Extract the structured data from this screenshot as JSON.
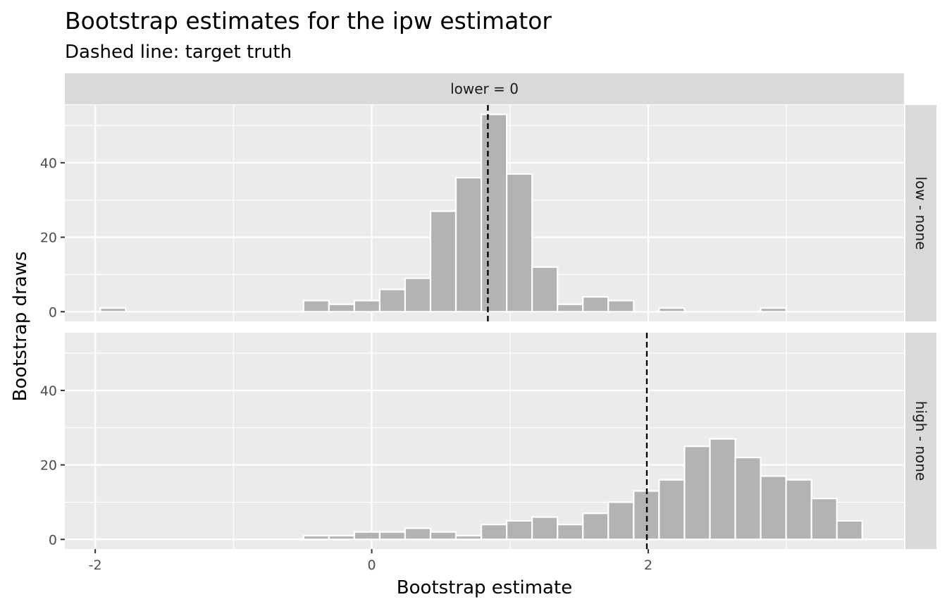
{
  "chart_data": {
    "type": "bar",
    "title": "Bootstrap estimates for the ipw estimator",
    "subtitle": "Dashed line: target truth",
    "xlabel": "Bootstrap estimate",
    "ylabel": "Bootstrap draws",
    "column_strip": "lower = 0",
    "xlim": [
      -2.22,
      3.85
    ],
    "ylim": [
      -2.6,
      55.5
    ],
    "x_ticks": [
      -2,
      0,
      2
    ],
    "x_tick_labels": [
      "-2",
      "0",
      "2"
    ],
    "y_ticks": [
      0,
      20,
      40
    ],
    "y_tick_labels": [
      "0",
      "20",
      "40"
    ],
    "grid": true,
    "bin_width": 0.1837,
    "bin_start": -1.963,
    "panels": [
      {
        "strip": "low - none",
        "truth": 0.84,
        "counts": [
          1,
          0,
          0,
          0,
          0,
          0,
          0,
          0,
          3,
          2,
          3,
          6,
          9,
          27,
          36,
          53,
          37,
          12,
          2,
          4,
          3,
          0,
          1,
          0,
          0,
          0,
          1,
          0,
          0
        ]
      },
      {
        "strip": "high - none",
        "truth": 1.99,
        "counts": [
          0,
          0,
          0,
          0,
          0,
          0,
          0,
          0,
          1,
          1,
          2,
          2,
          3,
          2,
          1,
          4,
          5,
          6,
          4,
          7,
          10,
          13,
          16,
          25,
          27,
          22,
          17,
          16,
          11,
          5
        ]
      }
    ]
  },
  "colors": {
    "panel_background": "#ebebeb",
    "grid_line": "#ffffff",
    "strip_background": "#d9d9d9",
    "bar_fill": "#b3b3b3",
    "bar_outline": "#ffffff",
    "truth_line": "#000000",
    "tick_label": "#4d4d4d"
  }
}
